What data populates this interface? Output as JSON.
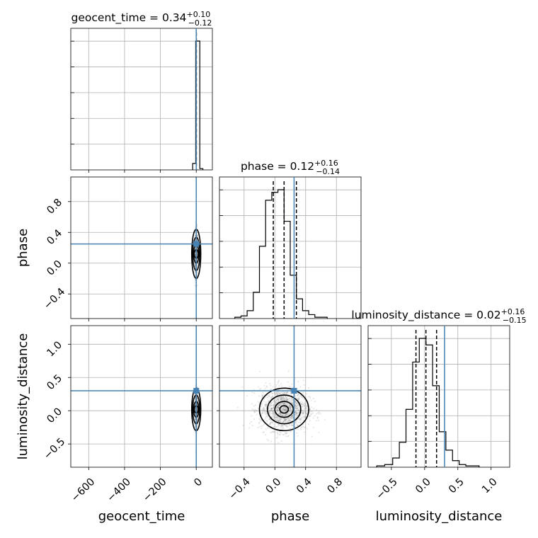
{
  "chart_data": {
    "type": "corner",
    "parameters": [
      "geocent_time",
      "phase",
      "luminosity_distance"
    ],
    "axis_labels": {
      "geocent_time": "geocent_time",
      "phase": "phase",
      "luminosity_distance": "luminosity_distance"
    },
    "ranges": {
      "geocent_time": [
        -700,
        90
      ],
      "phase": [
        -0.72,
        1.12
      ],
      "luminosity_distance": [
        -0.85,
        1.28
      ]
    },
    "ticks": {
      "geocent_time": [
        -600,
        -400,
        -200,
        0
      ],
      "phase": [
        -0.4,
        0.0,
        0.4,
        0.8
      ],
      "luminosity_distance": [
        -0.5,
        0.0,
        0.5,
        1.0
      ]
    },
    "tick_labels": {
      "geocent_time": [
        "−600",
        "−400",
        "−200",
        "0"
      ],
      "phase": [
        "−0.4",
        "0.0",
        "0.4",
        "0.8"
      ],
      "luminosity_distance": [
        "−0.5",
        "0.0",
        "0.5",
        "1.0"
      ]
    },
    "truths": {
      "geocent_time": 0.0,
      "phase": 0.25,
      "luminosity_distance": 0.3
    },
    "quantiles": {
      "geocent_time": [
        0.22,
        0.34,
        0.44
      ],
      "phase": [
        -0.02,
        0.12,
        0.28
      ],
      "luminosity_distance": [
        -0.13,
        0.02,
        0.18
      ]
    },
    "titles": [
      {
        "param": "geocent_time",
        "label": "geocent_time",
        "value": "0.34",
        "plus": "+0.10",
        "minus": "−0.12"
      },
      {
        "param": "phase",
        "label": "phase",
        "value": "0.12",
        "plus": "+0.16",
        "minus": "−0.14"
      },
      {
        "param": "luminosity_distance",
        "label": "luminosity_distance",
        "value": "0.02",
        "plus": "+0.16",
        "minus": "−0.15"
      }
    ],
    "histograms": {
      "geocent_time": {
        "edges": [
          -20,
          -3,
          20,
          37
        ],
        "counts": [
          0.05,
          1.0,
          0.01
        ]
      },
      "phase": {
        "edges": [
          -0.52,
          -0.44,
          -0.36,
          -0.28,
          -0.2,
          -0.12,
          -0.04,
          0.04,
          0.12,
          0.2,
          0.28,
          0.36,
          0.44,
          0.52,
          0.6,
          0.68
        ],
        "counts": [
          0.01,
          0.02,
          0.06,
          0.2,
          0.55,
          0.9,
          0.96,
          0.98,
          0.74,
          0.33,
          0.15,
          0.06,
          0.03,
          0.01,
          0.01
        ]
      },
      "luminosity_distance": {
        "edges": [
          -0.72,
          -0.6,
          -0.48,
          -0.38,
          -0.28,
          -0.18,
          -0.08,
          0.02,
          0.12,
          0.22,
          0.32,
          0.42,
          0.52,
          0.62,
          0.72,
          0.82
        ],
        "counts": [
          0.01,
          0.02,
          0.07,
          0.19,
          0.44,
          0.8,
          0.98,
          0.93,
          0.62,
          0.27,
          0.13,
          0.05,
          0.02,
          0.01,
          0.01
        ]
      }
    },
    "scatter_2d": {
      "phase_vs_geocent_time": {
        "x_center": 0.0,
        "x_sigma": 3.0,
        "y_center": 0.12,
        "y_sigma": 0.16
      },
      "luminosity_distance_vs_geocent_time": {
        "x_center": 0.0,
        "x_sigma": 3.0,
        "y_center": 0.02,
        "y_sigma": 0.16
      },
      "luminosity_distance_vs_phase": {
        "x_center": 0.12,
        "x_sigma": 0.16,
        "y_center": 0.02,
        "y_sigma": 0.16
      }
    },
    "grid": true
  }
}
